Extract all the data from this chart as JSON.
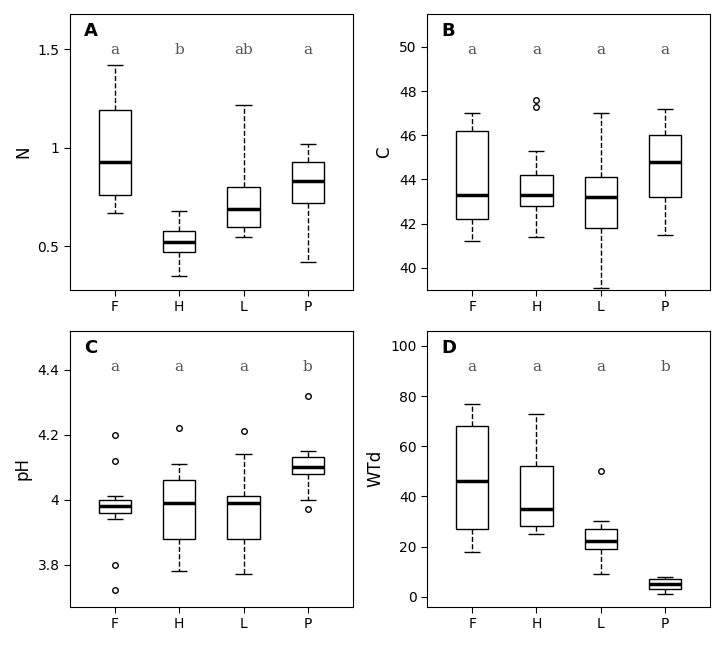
{
  "panels": {
    "A": {
      "ylabel": "N",
      "label": "A",
      "sig_labels": [
        "a",
        "b",
        "ab",
        "a"
      ],
      "categories": [
        "F",
        "H",
        "L",
        "P"
      ],
      "boxes": [
        {
          "med": 0.93,
          "q1": 0.76,
          "q3": 1.19,
          "whislo": 0.67,
          "whishi": 1.42,
          "fliers": []
        },
        {
          "med": 0.52,
          "q1": 0.47,
          "q3": 0.58,
          "whislo": 0.35,
          "whishi": 0.68,
          "fliers": []
        },
        {
          "med": 0.69,
          "q1": 0.6,
          "q3": 0.8,
          "whislo": 0.55,
          "whishi": 1.22,
          "fliers": []
        },
        {
          "med": 0.83,
          "q1": 0.72,
          "q3": 0.93,
          "whislo": 0.42,
          "whishi": 1.02,
          "fliers": []
        }
      ],
      "ylim": [
        0.28,
        1.68
      ],
      "yticks": [
        0.5,
        1.0,
        1.5
      ]
    },
    "B": {
      "ylabel": "C",
      "label": "B",
      "sig_labels": [
        "a",
        "a",
        "a",
        "a"
      ],
      "categories": [
        "F",
        "H",
        "L",
        "P"
      ],
      "boxes": [
        {
          "med": 43.3,
          "q1": 42.2,
          "q3": 46.2,
          "whislo": 41.2,
          "whishi": 47.0,
          "fliers": []
        },
        {
          "med": 43.3,
          "q1": 42.8,
          "q3": 44.2,
          "whislo": 41.4,
          "whishi": 45.3,
          "fliers": [
            47.3,
            47.6
          ]
        },
        {
          "med": 43.2,
          "q1": 41.8,
          "q3": 44.1,
          "whislo": 39.1,
          "whishi": 47.0,
          "fliers": []
        },
        {
          "med": 44.8,
          "q1": 43.2,
          "q3": 46.0,
          "whislo": 41.5,
          "whishi": 47.2,
          "fliers": []
        }
      ],
      "ylim": [
        39.0,
        51.5
      ],
      "yticks": [
        40,
        42,
        44,
        46,
        48,
        50
      ]
    },
    "C": {
      "ylabel": "pH",
      "label": "C",
      "sig_labels": [
        "a",
        "a",
        "a",
        "b"
      ],
      "categories": [
        "F",
        "H",
        "L",
        "P"
      ],
      "boxes": [
        {
          "med": 3.98,
          "q1": 3.96,
          "q3": 4.0,
          "whislo": 3.94,
          "whishi": 4.01,
          "fliers": [
            4.2,
            4.12,
            3.8,
            3.72
          ]
        },
        {
          "med": 3.99,
          "q1": 3.88,
          "q3": 4.06,
          "whislo": 3.78,
          "whishi": 4.11,
          "fliers": [
            4.22
          ]
        },
        {
          "med": 3.99,
          "q1": 3.88,
          "q3": 4.01,
          "whislo": 3.77,
          "whishi": 4.14,
          "fliers": [
            4.21
          ]
        },
        {
          "med": 4.1,
          "q1": 4.08,
          "q3": 4.13,
          "whislo": 4.0,
          "whishi": 4.15,
          "fliers": [
            4.32,
            3.97
          ]
        }
      ],
      "ylim": [
        3.67,
        4.52
      ],
      "yticks": [
        3.8,
        4.0,
        4.2,
        4.4
      ]
    },
    "D": {
      "ylabel": "WTd",
      "label": "D",
      "sig_labels": [
        "a",
        "a",
        "a",
        "b"
      ],
      "categories": [
        "F",
        "H",
        "L",
        "P"
      ],
      "boxes": [
        {
          "med": 46.0,
          "q1": 27.0,
          "q3": 68.0,
          "whislo": 18.0,
          "whishi": 77.0,
          "fliers": []
        },
        {
          "med": 35.0,
          "q1": 28.0,
          "q3": 52.0,
          "whislo": 25.0,
          "whishi": 73.0,
          "fliers": []
        },
        {
          "med": 22.0,
          "q1": 19.0,
          "q3": 27.0,
          "whislo": 9.0,
          "whishi": 30.0,
          "fliers": [
            50.0
          ]
        },
        {
          "med": 5.0,
          "q1": 3.0,
          "q3": 7.0,
          "whislo": 1.0,
          "whishi": 8.0,
          "fliers": []
        }
      ],
      "ylim": [
        -4,
        106
      ],
      "yticks": [
        0,
        20,
        40,
        60,
        80,
        100
      ]
    }
  },
  "box_color": "white",
  "median_color": "black",
  "whisker_color": "black",
  "flier_marker": "o",
  "flier_color": "black",
  "background_color": "white",
  "sig_label_fontsize": 11,
  "panel_label_fontsize": 13,
  "axis_label_fontsize": 12,
  "tick_fontsize": 10
}
